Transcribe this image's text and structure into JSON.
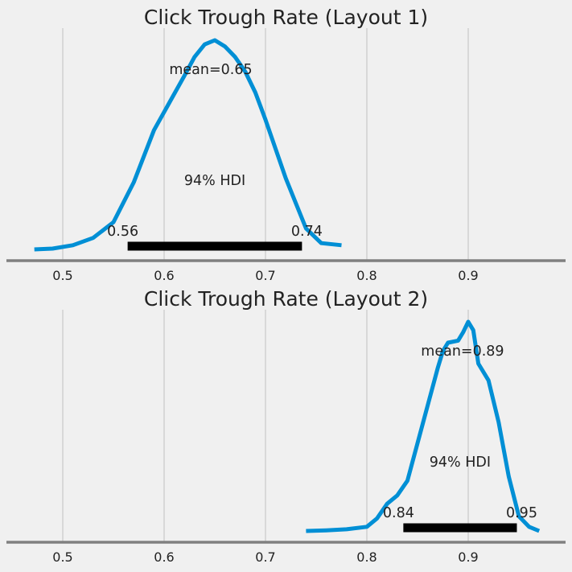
{
  "colors": {
    "background": "#f0f0f0",
    "density": "#008fd5",
    "hdi_bar": "#000000",
    "grid": "#cbcbcb",
    "axis": "#808080"
  },
  "chart_data": [
    {
      "type": "area",
      "title": "Click Trough Rate (Layout 1)",
      "xlim": [
        0.45,
        0.99
      ],
      "xticks": [
        0.5,
        0.6,
        0.7,
        0.8,
        0.9
      ],
      "xtick_labels": [
        "0.5",
        "0.6",
        "0.7",
        "0.8",
        "0.9"
      ],
      "grid": "vertical",
      "series": [
        {
          "x": [
            0.472,
            0.49,
            0.51,
            0.53,
            0.55,
            0.57,
            0.59,
            0.605,
            0.62,
            0.63,
            0.64,
            0.65,
            0.66,
            0.67,
            0.68,
            0.69,
            0.7,
            0.72,
            0.74,
            0.755,
            0.775
          ],
          "y": [
            0.0,
            0.004,
            0.02,
            0.055,
            0.13,
            0.32,
            0.57,
            0.7,
            0.83,
            0.92,
            0.98,
            1.0,
            0.97,
            0.92,
            0.85,
            0.75,
            0.62,
            0.34,
            0.1,
            0.03,
            0.02
          ]
        }
      ],
      "mean_label": "mean=0.65",
      "hdi_label": "94% HDI",
      "hdi": {
        "low": 0.564,
        "high": 0.736,
        "low_label": "0.56",
        "high_label": "0.74"
      }
    },
    {
      "type": "area",
      "title": "Click Trough Rate (Layout 2)",
      "xlim": [
        0.45,
        0.99
      ],
      "xticks": [
        0.5,
        0.6,
        0.7,
        0.8,
        0.9
      ],
      "xtick_labels": [
        "0.5",
        "0.6",
        "0.7",
        "0.8",
        "0.9"
      ],
      "grid": "vertical",
      "series": [
        {
          "x": [
            0.74,
            0.76,
            0.78,
            0.8,
            0.81,
            0.82,
            0.83,
            0.84,
            0.85,
            0.86,
            0.87,
            0.875,
            0.88,
            0.89,
            0.895,
            0.9,
            0.905,
            0.91,
            0.92,
            0.93,
            0.94,
            0.95,
            0.96,
            0.97
          ],
          "y": [
            0.0,
            0.003,
            0.008,
            0.02,
            0.06,
            0.13,
            0.17,
            0.24,
            0.42,
            0.6,
            0.78,
            0.86,
            0.9,
            0.91,
            0.95,
            1.0,
            0.96,
            0.8,
            0.72,
            0.52,
            0.26,
            0.07,
            0.02,
            0.0
          ]
        }
      ],
      "mean_label": "mean=0.89",
      "hdi_label": "94% HDI",
      "hdi": {
        "low": 0.836,
        "high": 0.948,
        "low_label": "0.84",
        "high_label": "0.95"
      }
    }
  ]
}
